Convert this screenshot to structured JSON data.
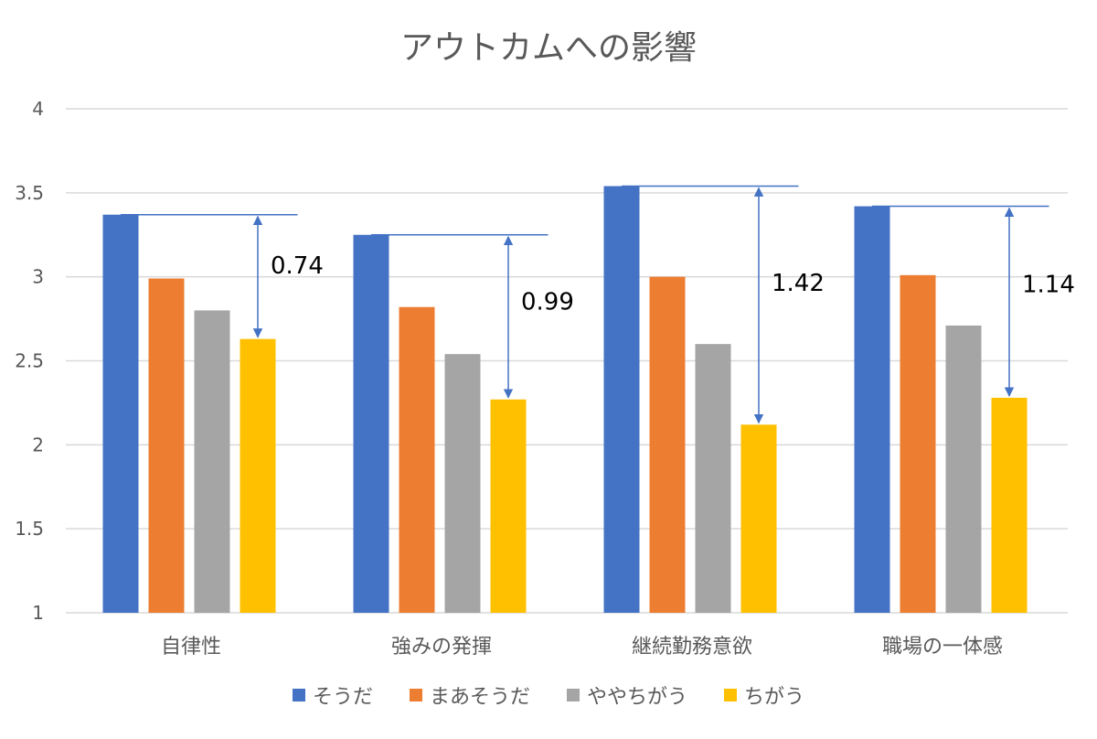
{
  "chart_data": {
    "type": "bar",
    "title": "アウトカムへの影響",
    "categories": [
      "自律性",
      "強みの発揮",
      "継続勤務意欲",
      "職場の一体感"
    ],
    "series": [
      {
        "name": "そうだ",
        "color": "#4472C4",
        "values": [
          3.37,
          3.25,
          3.54,
          3.42
        ]
      },
      {
        "name": "まあそうだ",
        "color": "#ED7D31",
        "values": [
          2.99,
          2.82,
          3.0,
          3.01
        ]
      },
      {
        "name": "ややちがう",
        "color": "#A5A5A5",
        "values": [
          2.8,
          2.54,
          2.6,
          2.71
        ]
      },
      {
        "name": "ちがう",
        "color": "#FFC000",
        "values": [
          2.63,
          2.27,
          2.12,
          2.28
        ]
      }
    ],
    "differences": [
      "0.74",
      "0.99",
      "1.42",
      "1.14"
    ],
    "yticks": [
      "1",
      "1.5",
      "2",
      "2.5",
      "3",
      "3.5",
      "4"
    ],
    "ylim": [
      1,
      4
    ],
    "grid": true,
    "legend_position": "bottom"
  }
}
